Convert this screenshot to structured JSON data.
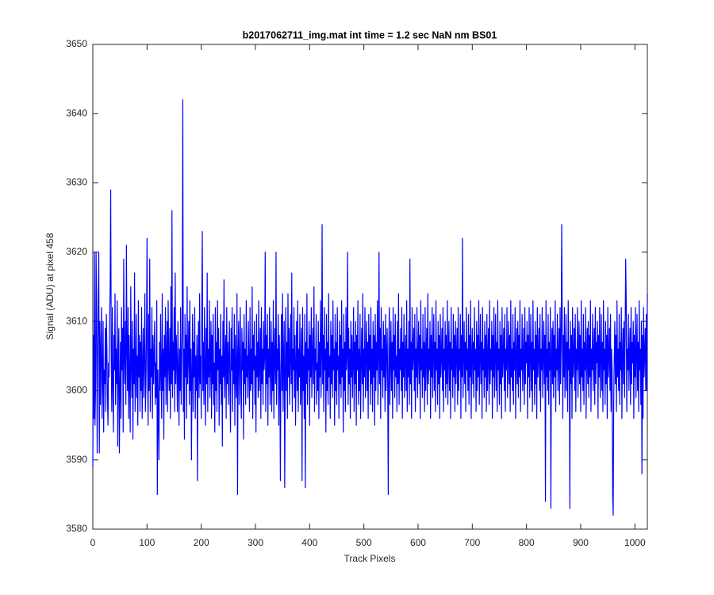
{
  "chart_data": {
    "type": "line",
    "title": "b2017062711_img.mat int time = 1.2 sec  NaN nm BS01",
    "xlabel": "Track Pixels",
    "ylabel": "Signal (ADU) at pixel 458",
    "color": "#0000ff",
    "xlim": [
      0,
      1023
    ],
    "xticks": [
      0,
      100,
      200,
      300,
      400,
      500,
      600,
      700,
      800,
      900,
      1000
    ],
    "ylim": [
      3580,
      3650
    ],
    "yticks": [
      3580,
      3590,
      3600,
      3610,
      3620,
      3630,
      3640,
      3650
    ],
    "values": [
      3589,
      3608,
      3596,
      3620,
      3595,
      3600,
      3620,
      3612,
      3591,
      3605,
      3612,
      3620,
      3591,
      3610,
      3598,
      3606,
      3612,
      3596,
      3602,
      3610,
      3594,
      3603,
      3601,
      3609,
      3597,
      3611,
      3606,
      3599,
      3595,
      3604,
      3602,
      3610,
      3615,
      3629,
      3605,
      3597,
      3612,
      3601,
      3594,
      3608,
      3603,
      3614,
      3598,
      3606,
      3601,
      3613,
      3592,
      3604,
      3609,
      3591,
      3600,
      3607,
      3596,
      3612,
      3603,
      3609,
      3594,
      3619,
      3605,
      3601,
      3610,
      3598,
      3621,
      3606,
      3600,
      3612,
      3596,
      3608,
      3602,
      3594,
      3615,
      3604,
      3599,
      3610,
      3593,
      3606,
      3601,
      3617,
      3597,
      3603,
      3611,
      3599,
      3605,
      3595,
      3613,
      3602,
      3608,
      3597,
      3607,
      3600,
      3612,
      3596,
      3603,
      3609,
      3599,
      3605,
      3614,
      3597,
      3601,
      3608,
      3622,
      3603,
      3595,
      3611,
      3600,
      3619,
      3597,
      3606,
      3602,
      3612,
      3596,
      3608,
      3601,
      3605,
      3610,
      3598,
      3604,
      3599,
      3613,
      3585,
      3603,
      3596,
      3590,
      3607,
      3600,
      3611,
      3602,
      3596,
      3614,
      3600,
      3606,
      3593,
      3608,
      3602,
      3612,
      3598,
      3605,
      3610,
      3597,
      3613,
      3604,
      3600,
      3609,
      3596,
      3615,
      3601,
      3626,
      3599,
      3607,
      3603,
      3612,
      3597,
      3617,
      3601,
      3608,
      3604,
      3597,
      3610,
      3603,
      3595,
      3606,
      3600,
      3612,
      3598,
      3604,
      3609,
      3642,
      3597,
      3606,
      3593,
      3611,
      3602,
      3608,
      3596,
      3615,
      3601,
      3605,
      3610,
      3598,
      3613,
      3600,
      3606,
      3590,
      3603,
      3611,
      3597,
      3607,
      3602,
      3612,
      3596,
      3605,
      3600,
      3608,
      3587,
      3604,
      3610,
      3599,
      3614,
      3601,
      3605,
      3596,
      3611,
      3623,
      3600,
      3607,
      3598,
      3612,
      3603,
      3595,
      3609,
      3601,
      3617,
      3597,
      3606,
      3602,
      3613,
      3599,
      3604,
      3610,
      3596,
      3608,
      3601,
      3611,
      3598,
      3604,
      3594,
      3612,
      3600,
      3607,
      3597,
      3613,
      3603,
      3609,
      3595,
      3606,
      3601,
      3611,
      3598,
      3605,
      3592,
      3610,
      3602,
      3616,
      3599,
      3604,
      3608,
      3596,
      3612,
      3601,
      3607,
      3598,
      3605,
      3610,
      3600,
      3594,
      3609,
      3603,
      3612,
      3597,
      3606,
      3601,
      3611,
      3595,
      3608,
      3602,
      3599,
      3614,
      3585,
      3605,
      3610,
      3598,
      3604,
      3612,
      3600,
      3596,
      3609,
      3603,
      3607,
      3593,
      3611,
      3601,
      3606,
      3598,
      3613,
      3602,
      3605,
      3599,
      3610,
      3604,
      3597,
      3612,
      3600,
      3606,
      3601,
      3615,
      3596,
      3608,
      3603,
      3610,
      3598,
      3605,
      3594,
      3611,
      3602,
      3607,
      3599,
      3613,
      3600,
      3604,
      3609,
      3596,
      3612,
      3601,
      3606,
      3598,
      3610,
      3603,
      3605,
      3620,
      3597,
      3608,
      3601,
      3611,
      3595,
      3606,
      3602,
      3612,
      3598,
      3604,
      3610,
      3597,
      3607,
      3600,
      3613,
      3596,
      3605,
      3609,
      3601,
      3620,
      3598,
      3606,
      3603,
      3611,
      3595,
      3608,
      3602,
      3587,
      3604,
      3611,
      3600,
      3614,
      3597,
      3605,
      3610,
      3586,
      3603,
      3612,
      3600,
      3607,
      3596,
      3614,
      3602,
      3609,
      3598,
      3605,
      3611,
      3601,
      3617,
      3597,
      3606,
      3603,
      3612,
      3599,
      3608,
      3595,
      3604,
      3610,
      3600,
      3613,
      3597,
      3606,
      3602,
      3611,
      3598,
      3604,
      3609,
      3587,
      3612,
      3600,
      3605,
      3596,
      3611,
      3586,
      3607,
      3601,
      3614,
      3598,
      3606,
      3603,
      3610,
      3595,
      3608,
      3602,
      3612,
      3599,
      3605,
      3609,
      3601,
      3615,
      3597,
      3606,
      3603,
      3611,
      3598,
      3604,
      3600,
      3610,
      3596,
      3607,
      3602,
      3613,
      3599,
      3605,
      3624,
      3601,
      3608,
      3597,
      3612,
      3603,
      3606,
      3594,
      3611,
      3600,
      3607,
      3598,
      3614,
      3602,
      3605,
      3596,
      3610,
      3601,
      3608,
      3599,
      3613,
      3603,
      3606,
      3595,
      3611,
      3600,
      3607,
      3598,
      3612,
      3603,
      3605,
      3596,
      3610,
      3601,
      3608,
      3599,
      3613,
      3602,
      3606,
      3594,
      3611,
      3600,
      3607,
      3597,
      3612,
      3603,
      3605,
      3620,
      3598,
      3609,
      3601,
      3606,
      3596,
      3610,
      3602,
      3608,
      3599,
      3605,
      3612,
      3597,
      3607,
      3601,
      3610,
      3595,
      3608,
      3603,
      3613,
      3598,
      3606,
      3600,
      3611,
      3596,
      3604,
      3609,
      3601,
      3614,
      3597,
      3606,
      3602,
      3612,
      3599,
      3605,
      3610,
      3600,
      3607,
      3596,
      3611,
      3603,
      3608,
      3598,
      3612,
      3601,
      3606,
      3597,
      3610,
      3602,
      3608,
      3595,
      3611,
      3600,
      3607,
      3603,
      3613,
      3598,
      3605,
      3620,
      3601,
      3609,
      3596,
      3612,
      3603,
      3606,
      3599,
      3610,
      3602,
      3608,
      3597,
      3611,
      3600,
      3605,
      3609,
      3601,
      3585,
      3606,
      3612,
      3598,
      3604,
      3610,
      3600,
      3607,
      3596,
      3612,
      3603,
      3608,
      3599,
      3611,
      3602,
      3605,
      3597,
      3610,
      3601,
      3614,
      3598,
      3606,
      3603,
      3609,
      3600,
      3612,
      3596,
      3607,
      3602,
      3611,
      3599,
      3605,
      3608,
      3600,
      3613,
      3597,
      3606,
      3602,
      3610,
      3598,
      3619,
      3601,
      3607,
      3596,
      3612,
      3603,
      3605,
      3609,
      3600,
      3611,
      3597,
      3606,
      3602,
      3612,
      3599,
      3605,
      3610,
      3601,
      3608,
      3596,
      3613,
      3603,
      3606,
      3599,
      3611,
      3602,
      3607,
      3597,
      3612,
      3600,
      3605,
      3609,
      3598,
      3614,
      3601,
      3606,
      3603,
      3610,
      3596,
      3608,
      3602,
      3612,
      3599,
      3605,
      3611,
      3600,
      3607,
      3597,
      3613,
      3603,
      3606,
      3598,
      3610,
      3601,
      3608,
      3596,
      3611,
      3602,
      3605,
      3609,
      3600,
      3612,
      3597,
      3606,
      3603,
      3610,
      3599,
      3608,
      3601,
      3613,
      3598,
      3605,
      3610,
      3600,
      3607,
      3596,
      3612,
      3603,
      3606,
      3599,
      3611,
      3602,
      3608,
      3597,
      3610,
      3601,
      3605,
      3609,
      3598,
      3612,
      3600,
      3606,
      3603,
      3611,
      3596,
      3608,
      3602,
      3622,
      3599,
      3605,
      3610,
      3601,
      3607,
      3597,
      3612,
      3603,
      3606,
      3600,
      3611,
      3598,
      3608,
      3602,
      3613,
      3596,
      3605,
      3609,
      3601,
      3607,
      3599,
      3612,
      3603,
      3606,
      3597,
      3610,
      3600,
      3608,
      3602,
      3613,
      3598,
      3605,
      3611,
      3601,
      3607,
      3596,
      3612,
      3603,
      3606,
      3599,
      3610,
      3602,
      3608,
      3597,
      3611,
      3600,
      3605,
      3609,
      3598,
      3613,
      3601,
      3606,
      3603,
      3610,
      3596,
      3608,
      3602,
      3612,
      3599,
      3605,
      3611,
      3600,
      3607,
      3597,
      3613,
      3603,
      3606,
      3598,
      3610,
      3601,
      3608,
      3596,
      3612,
      3602,
      3605,
      3609,
      3600,
      3611,
      3597,
      3606,
      3603,
      3612,
      3599,
      3605,
      3610,
      3601,
      3608,
      3597,
      3613,
      3602,
      3606,
      3600,
      3611,
      3598,
      3607,
      3603,
      3612,
      3596,
      3605,
      3609,
      3601,
      3610,
      3599,
      3608,
      3602,
      3613,
      3597,
      3606,
      3603,
      3611,
      3600,
      3605,
      3609,
      3598,
      3612,
      3601,
      3607,
      3604,
      3610,
      3596,
      3608,
      3602,
      3612,
      3599,
      3605,
      3611,
      3600,
      3607,
      3597,
      3613,
      3603,
      3606,
      3598,
      3610,
      3601,
      3608,
      3596,
      3612,
      3602,
      3605,
      3609,
      3600,
      3611,
      3597,
      3606,
      3603,
      3612,
      3599,
      3605,
      3610,
      3601,
      3608,
      3584,
      3613,
      3602,
      3606,
      3600,
      3611,
      3598,
      3607,
      3603,
      3612,
      3583,
      3605,
      3609,
      3601,
      3610,
      3599,
      3608,
      3602,
      3613,
      3597,
      3606,
      3603,
      3611,
      3600,
      3605,
      3609,
      3598,
      3612,
      3601,
      3607,
      3624,
      3610,
      3596,
      3608,
      3602,
      3612,
      3599,
      3605,
      3611,
      3600,
      3607,
      3597,
      3613,
      3603,
      3606,
      3583,
      3610,
      3601,
      3608,
      3596,
      3612,
      3602,
      3605,
      3609,
      3600,
      3611,
      3597,
      3606,
      3603,
      3612,
      3599,
      3605,
      3610,
      3601,
      3608,
      3597,
      3613,
      3602,
      3606,
      3600,
      3611,
      3598,
      3607,
      3603,
      3612,
      3596,
      3605,
      3609,
      3601,
      3610,
      3599,
      3608,
      3602,
      3613,
      3597,
      3606,
      3603,
      3611,
      3600,
      3605,
      3609,
      3598,
      3612,
      3601,
      3607,
      3604,
      3610,
      3596,
      3608,
      3602,
      3612,
      3599,
      3605,
      3611,
      3600,
      3607,
      3597,
      3613,
      3603,
      3606,
      3598,
      3610,
      3601,
      3608,
      3596,
      3612,
      3602,
      3605,
      3609,
      3600,
      3611,
      3597,
      3606,
      3603,
      3585,
      3582,
      3599,
      3605,
      3610,
      3601,
      3608,
      3597,
      3613,
      3602,
      3606,
      3600,
      3611,
      3598,
      3607,
      3603,
      3612,
      3596,
      3605,
      3609,
      3601,
      3610,
      3599,
      3608,
      3619,
      3613,
      3597,
      3606,
      3603,
      3611,
      3600,
      3605,
      3609,
      3598,
      3612,
      3601,
      3607,
      3604,
      3610,
      3596,
      3608,
      3602,
      3612,
      3599,
      3605,
      3611,
      3600,
      3607,
      3597,
      3613,
      3603,
      3606,
      3598,
      3610,
      3588,
      3608,
      3596,
      3612,
      3602,
      3605,
      3609,
      3600,
      3611,
      3600,
      3614
    ]
  }
}
